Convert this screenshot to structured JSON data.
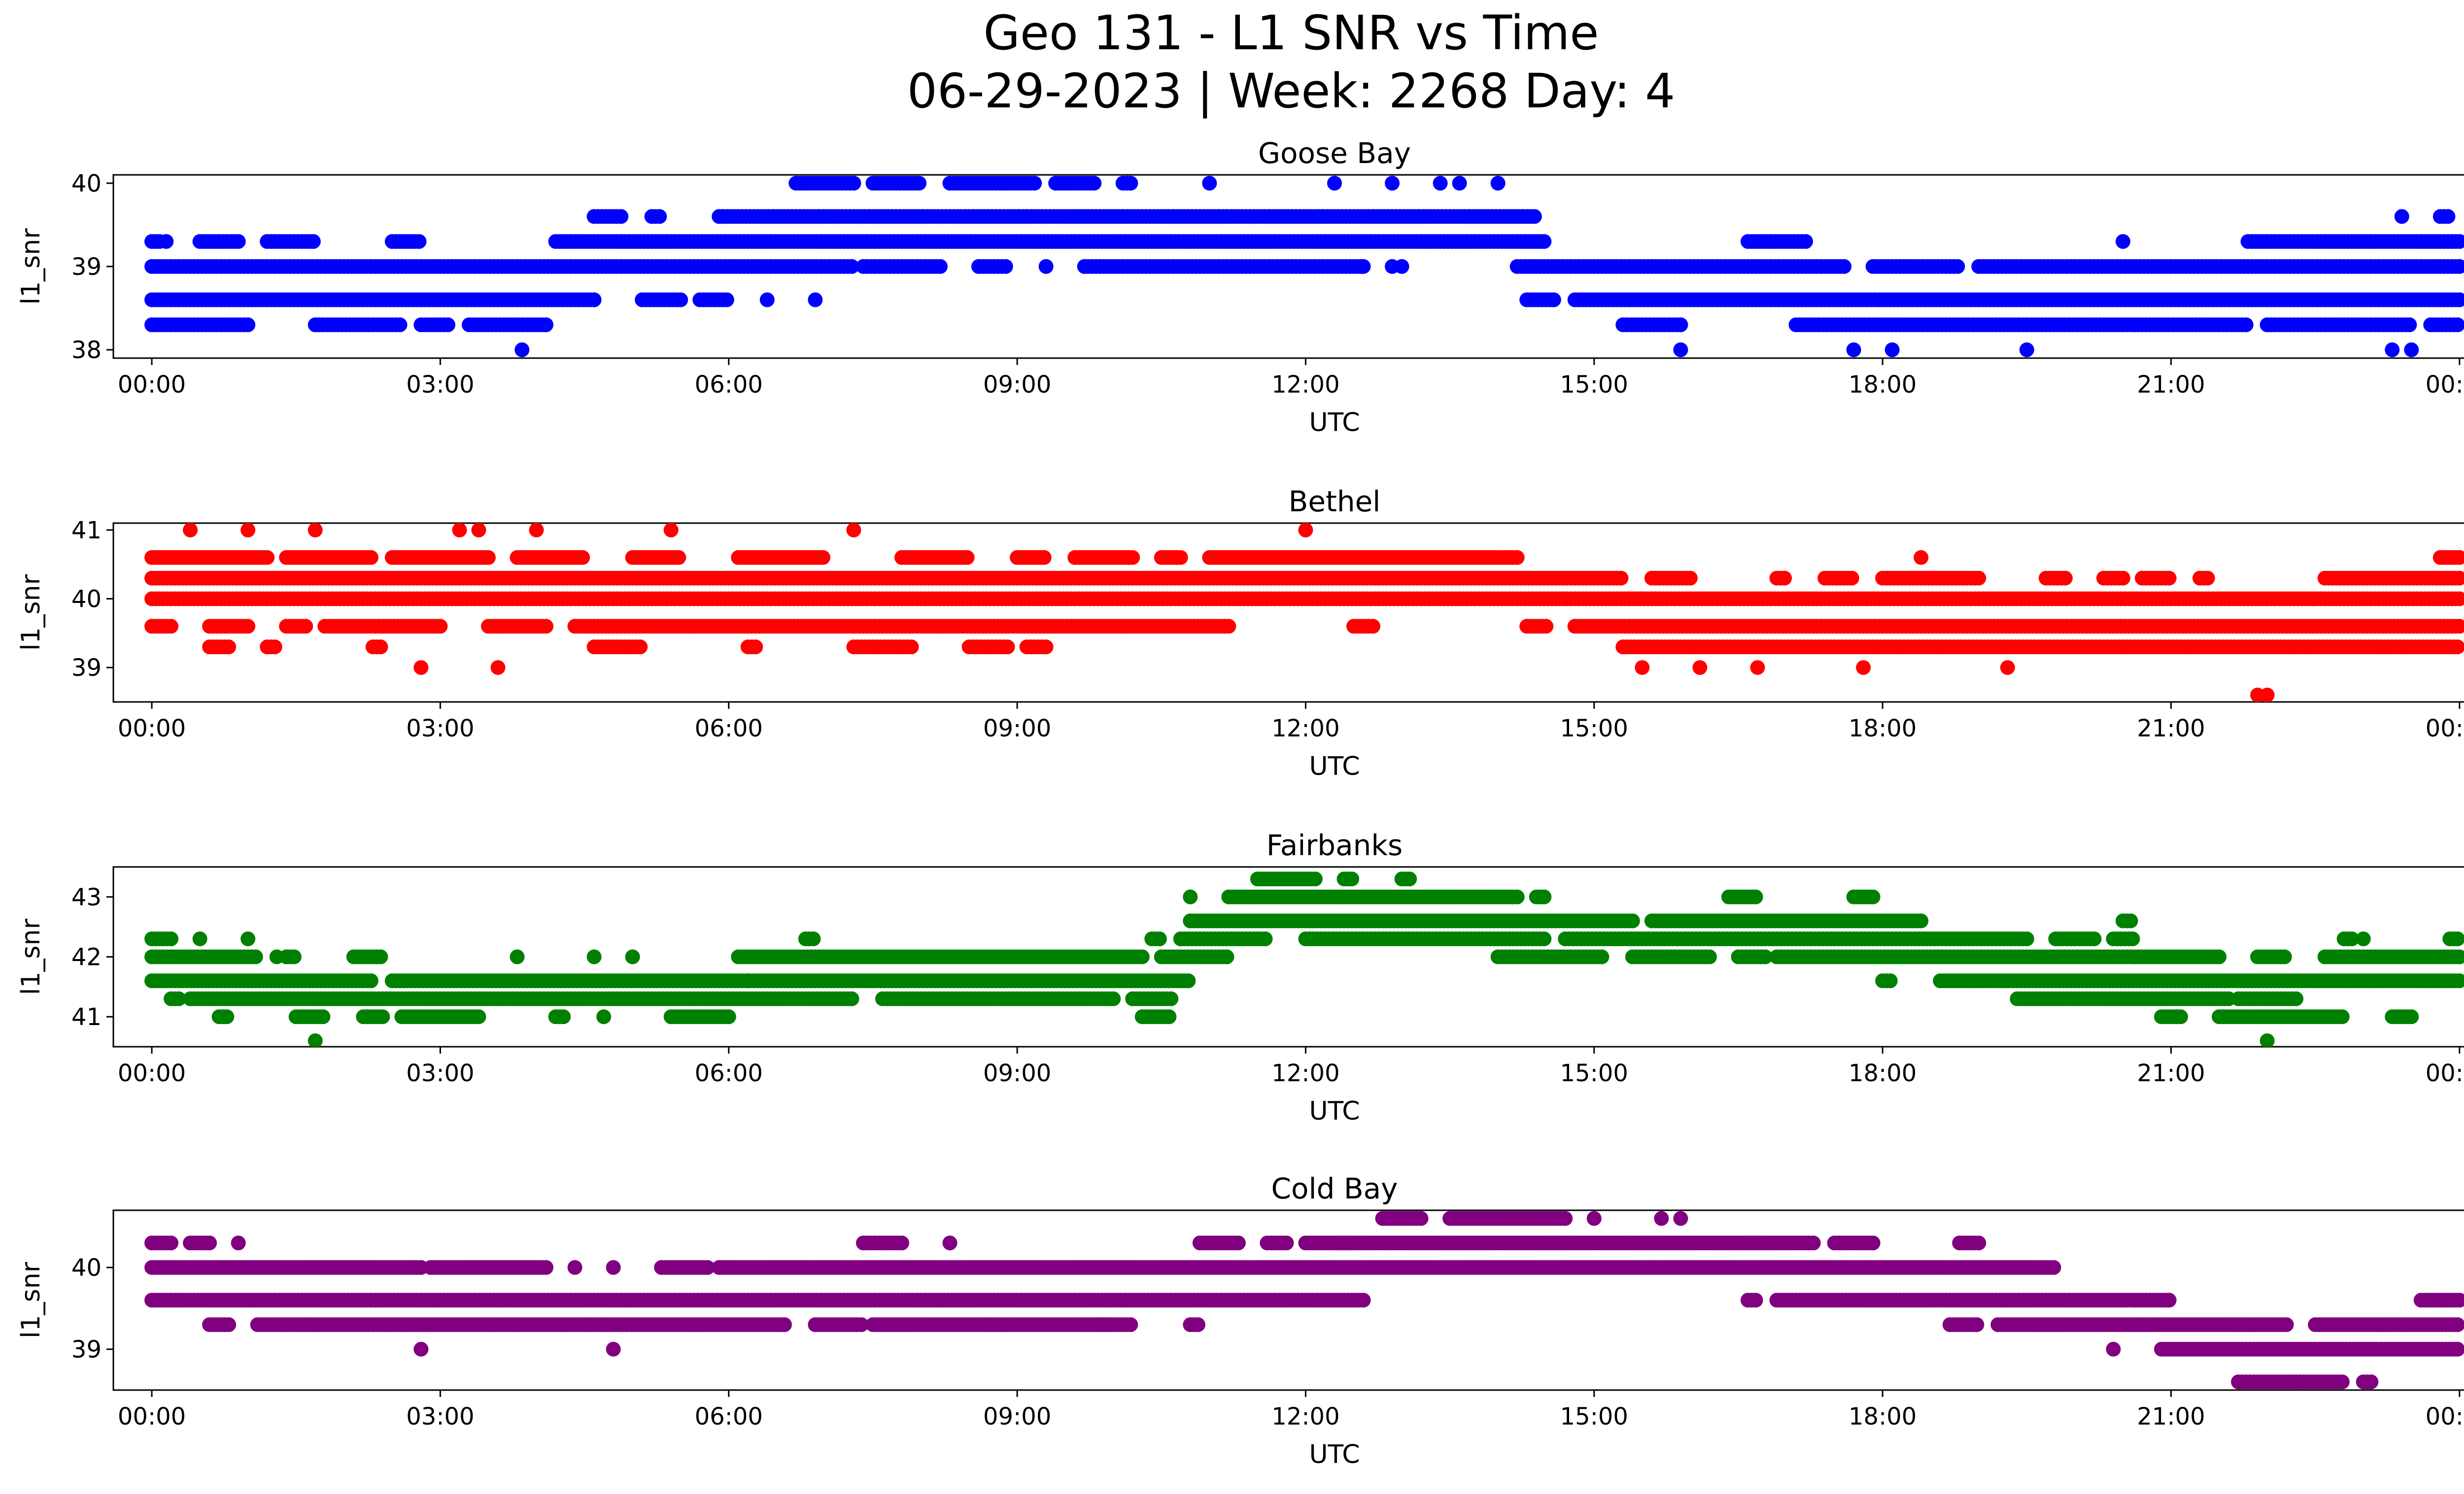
{
  "figure": {
    "title_line1": "Geo 131 - L1 SNR vs Time",
    "title_line2": "06-29-2023 | Week: 2268 Day: 4"
  },
  "chart_data": [
    {
      "type": "scatter",
      "title": "Goose Bay",
      "xlabel": "UTC",
      "ylabel": "l1_snr",
      "color": "#0000ff",
      "xlim": [
        -0.4,
        25.0
      ],
      "ylim": [
        37.9,
        40.1
      ],
      "xticks": [
        "00:00",
        "03:00",
        "06:00",
        "09:00",
        "12:00",
        "15:00",
        "18:00",
        "21:00",
        "00:00"
      ],
      "yticks": [
        38,
        39,
        40
      ],
      "bands": [
        {
          "y": 38.3,
          "segments": [
            [
              0.0,
              1.0
            ],
            [
              1.7,
              2.6
            ],
            [
              2.8,
              3.1
            ],
            [
              3.3,
              4.1
            ],
            [
              15.3,
              15.9
            ],
            [
              17.1,
              21.8
            ],
            [
              22.0,
              23.5
            ],
            [
              23.7,
              24.0
            ]
          ]
        },
        {
          "y": 38.6,
          "segments": [
            [
              0.0,
              4.6
            ],
            [
              5.1,
              5.5
            ],
            [
              5.7,
              6.0
            ],
            [
              14.3,
              14.6
            ],
            [
              14.8,
              24.0
            ]
          ]
        },
        {
          "y": 39.0,
          "segments": [
            [
              0.0,
              7.3
            ],
            [
              7.4,
              8.2
            ],
            [
              8.6,
              8.9
            ],
            [
              9.7,
              12.6
            ],
            [
              14.2,
              17.6
            ],
            [
              17.9,
              18.8
            ],
            [
              19.0,
              24.0
            ]
          ]
        },
        {
          "y": 39.3,
          "segments": [
            [
              0.0,
              0.1
            ],
            [
              0.5,
              0.9
            ],
            [
              1.2,
              1.7
            ],
            [
              2.5,
              2.8
            ],
            [
              4.2,
              14.5
            ],
            [
              16.6,
              17.2
            ],
            [
              21.8,
              24.0
            ]
          ]
        },
        {
          "y": 39.6,
          "segments": [
            [
              4.6,
              4.9
            ],
            [
              5.2,
              5.3
            ],
            [
              5.9,
              14.4
            ],
            [
              23.4,
              23.4
            ],
            [
              23.8,
              23.9
            ]
          ]
        },
        {
          "y": 40.0,
          "segments": [
            [
              6.7,
              7.3
            ],
            [
              7.5,
              8.0
            ],
            [
              8.3,
              9.2
            ],
            [
              9.4,
              9.8
            ],
            [
              10.1,
              10.2
            ]
          ]
        }
      ],
      "points": [
        [
          0.15,
          39.3
        ],
        [
          3.85,
          38.0
        ],
        [
          6.4,
          38.6
        ],
        [
          6.9,
          38.6
        ],
        [
          8.6,
          39.0
        ],
        [
          9.3,
          39.0
        ],
        [
          11.0,
          40.0
        ],
        [
          12.3,
          40.0
        ],
        [
          12.6,
          39.0
        ],
        [
          12.9,
          39.0
        ],
        [
          13.0,
          39.0
        ],
        [
          12.9,
          40.0
        ],
        [
          13.4,
          40.0
        ],
        [
          13.6,
          40.0
        ],
        [
          14.0,
          40.0
        ],
        [
          15.9,
          38.0
        ],
        [
          17.7,
          38.0
        ],
        [
          18.1,
          38.0
        ],
        [
          19.5,
          38.0
        ],
        [
          20.5,
          39.3
        ],
        [
          23.3,
          38.0
        ],
        [
          23.5,
          38.0
        ]
      ]
    },
    {
      "type": "scatter",
      "title": "Bethel",
      "xlabel": "UTC",
      "ylabel": "l1_snr",
      "color": "#ff0000",
      "xlim": [
        -0.4,
        25.0
      ],
      "ylim": [
        38.5,
        41.1
      ],
      "xticks": [
        "00:00",
        "03:00",
        "06:00",
        "09:00",
        "12:00",
        "15:00",
        "18:00",
        "21:00",
        "00:00"
      ],
      "yticks": [
        39,
        40,
        41
      ],
      "bands": [
        {
          "y": 39.3,
          "segments": [
            [
              0.6,
              0.8
            ],
            [
              1.2,
              1.3
            ],
            [
              2.3,
              2.4
            ],
            [
              4.6,
              5.1
            ],
            [
              6.2,
              6.3
            ],
            [
              7.3,
              7.9
            ],
            [
              8.5,
              8.9
            ],
            [
              9.1,
              9.3
            ],
            [
              15.3,
              24.0
            ]
          ]
        },
        {
          "y": 39.6,
          "segments": [
            [
              0.0,
              0.2
            ],
            [
              0.6,
              1.0
            ],
            [
              1.4,
              1.6
            ],
            [
              1.8,
              3.0
            ],
            [
              3.5,
              4.1
            ],
            [
              4.4,
              11.2
            ],
            [
              12.5,
              12.7
            ],
            [
              14.3,
              14.5
            ],
            [
              14.8,
              24.0
            ]
          ]
        },
        {
          "y": 40.0,
          "segments": [
            [
              0.0,
              24.0
            ]
          ]
        },
        {
          "y": 40.3,
          "segments": [
            [
              0.0,
              15.3
            ],
            [
              15.6,
              16.0
            ],
            [
              16.9,
              17.0
            ],
            [
              17.4,
              17.7
            ],
            [
              18.0,
              19.0
            ],
            [
              19.7,
              19.9
            ],
            [
              20.3,
              20.5
            ],
            [
              20.7,
              21.0
            ],
            [
              21.3,
              21.4
            ],
            [
              22.6,
              24.0
            ]
          ]
        },
        {
          "y": 40.6,
          "segments": [
            [
              0.0,
              1.2
            ],
            [
              1.4,
              2.3
            ],
            [
              2.5,
              3.5
            ],
            [
              3.8,
              4.5
            ],
            [
              5.0,
              5.5
            ],
            [
              6.1,
              7.0
            ],
            [
              7.8,
              8.5
            ],
            [
              9.0,
              9.3
            ],
            [
              9.6,
              10.2
            ],
            [
              10.5,
              10.7
            ],
            [
              11.0,
              14.2
            ],
            [
              23.8,
              24.0
            ]
          ]
        }
      ],
      "points": [
        [
          0.4,
          41.0
        ],
        [
          1.0,
          41.0
        ],
        [
          1.7,
          41.0
        ],
        [
          3.2,
          41.0
        ],
        [
          3.4,
          41.0
        ],
        [
          4.0,
          41.0
        ],
        [
          5.4,
          41.0
        ],
        [
          7.3,
          41.0
        ],
        [
          12.0,
          41.0
        ],
        [
          2.8,
          39.0
        ],
        [
          3.6,
          39.0
        ],
        [
          15.5,
          39.0
        ],
        [
          16.1,
          39.0
        ],
        [
          16.7,
          39.0
        ],
        [
          17.8,
          39.0
        ],
        [
          18.4,
          40.6
        ],
        [
          19.3,
          39.0
        ],
        [
          21.9,
          38.6
        ],
        [
          22.0,
          38.6
        ]
      ]
    },
    {
      "type": "scatter",
      "title": "Fairbanks",
      "xlabel": "UTC",
      "ylabel": "l1_snr",
      "color": "#008000",
      "xlim": [
        -0.4,
        25.0
      ],
      "ylim": [
        40.5,
        43.5
      ],
      "xticks": [
        "00:00",
        "03:00",
        "06:00",
        "09:00",
        "12:00",
        "15:00",
        "18:00",
        "21:00",
        "00:00"
      ],
      "yticks": [
        41,
        42,
        43
      ],
      "bands": [
        {
          "y": 41.0,
          "segments": [
            [
              0.7,
              0.8
            ],
            [
              1.5,
              1.8
            ],
            [
              2.2,
              2.4
            ],
            [
              2.6,
              3.4
            ],
            [
              4.2,
              4.3
            ],
            [
              5.4,
              6.0
            ],
            [
              10.3,
              10.6
            ],
            [
              20.9,
              21.1
            ],
            [
              21.5,
              22.8
            ],
            [
              23.3,
              23.5
            ]
          ]
        },
        {
          "y": 41.3,
          "segments": [
            [
              0.2,
              0.3
            ],
            [
              0.4,
              7.3
            ],
            [
              7.6,
              10.0
            ],
            [
              10.2,
              10.6
            ],
            [
              19.4,
              21.6
            ],
            [
              21.7,
              22.3
            ]
          ]
        },
        {
          "y": 41.6,
          "segments": [
            [
              0.0,
              2.3
            ],
            [
              2.5,
              10.8
            ],
            [
              18.0,
              18.1
            ],
            [
              18.6,
              24.0
            ]
          ]
        },
        {
          "y": 42.0,
          "segments": [
            [
              0.0,
              1.1
            ],
            [
              1.4,
              1.5
            ],
            [
              2.1,
              2.4
            ],
            [
              6.1,
              10.3
            ],
            [
              10.5,
              11.2
            ],
            [
              14.0,
              15.1
            ],
            [
              15.4,
              16.2
            ],
            [
              16.5,
              16.8
            ],
            [
              16.9,
              21.5
            ],
            [
              21.9,
              22.2
            ],
            [
              22.6,
              24.0
            ]
          ]
        },
        {
          "y": 42.3,
          "segments": [
            [
              0.0,
              0.2
            ],
            [
              6.8,
              6.9
            ],
            [
              10.4,
              10.5
            ],
            [
              10.7,
              11.6
            ],
            [
              12.0,
              14.5
            ],
            [
              14.7,
              19.5
            ],
            [
              19.8,
              20.2
            ],
            [
              20.4,
              20.6
            ],
            [
              22.8,
              22.9
            ],
            [
              23.9,
              24.0
            ]
          ]
        },
        {
          "y": 42.6,
          "segments": [
            [
              10.8,
              15.4
            ],
            [
              15.6,
              18.4
            ],
            [
              20.5,
              20.6
            ]
          ]
        },
        {
          "y": 43.0,
          "segments": [
            [
              11.2,
              14.2
            ],
            [
              14.4,
              14.5
            ],
            [
              16.4,
              16.7
            ],
            [
              17.7,
              17.9
            ]
          ]
        },
        {
          "y": 43.3,
          "segments": [
            [
              11.5,
              12.1
            ],
            [
              12.4,
              12.5
            ],
            [
              13.0,
              13.1
            ]
          ]
        }
      ],
      "points": [
        [
          0.5,
          42.3
        ],
        [
          1.0,
          42.3
        ],
        [
          1.3,
          42.0
        ],
        [
          1.7,
          40.6
        ],
        [
          3.8,
          42.0
        ],
        [
          4.6,
          42.0
        ],
        [
          5.0,
          42.0
        ],
        [
          4.7,
          41.0
        ],
        [
          6.2,
          41.6
        ],
        [
          10.8,
          43.0
        ],
        [
          22.0,
          40.6
        ],
        [
          23.0,
          42.3
        ]
      ]
    },
    {
      "type": "scatter",
      "title": "Cold Bay",
      "xlabel": "UTC",
      "ylabel": "l1_snr",
      "color": "#800080",
      "xlim": [
        -0.4,
        25.0
      ],
      "ylim": [
        38.5,
        40.7
      ],
      "xticks": [
        "00:00",
        "03:00",
        "06:00",
        "09:00",
        "12:00",
        "15:00",
        "18:00",
        "21:00",
        "00:00"
      ],
      "yticks": [
        39,
        40
      ],
      "bands": [
        {
          "y": 38.6,
          "segments": [
            [
              21.7,
              22.8
            ],
            [
              23.0,
              23.1
            ]
          ]
        },
        {
          "y": 39.0,
          "segments": [
            [
              20.9,
              24.0
            ]
          ]
        },
        {
          "y": 39.3,
          "segments": [
            [
              0.6,
              0.8
            ],
            [
              1.1,
              6.6
            ],
            [
              6.9,
              7.4
            ],
            [
              7.5,
              10.2
            ],
            [
              10.8,
              10.9
            ],
            [
              18.7,
              19.0
            ],
            [
              19.2,
              22.2
            ],
            [
              22.5,
              24.0
            ]
          ]
        },
        {
          "y": 39.6,
          "segments": [
            [
              0.0,
              12.6
            ],
            [
              16.6,
              16.7
            ],
            [
              16.9,
              21.0
            ],
            [
              23.6,
              24.0
            ]
          ]
        },
        {
          "y": 40.0,
          "segments": [
            [
              0.0,
              2.8
            ],
            [
              2.9,
              4.1
            ],
            [
              5.3,
              5.8
            ],
            [
              5.9,
              19.8
            ]
          ]
        },
        {
          "y": 40.3,
          "segments": [
            [
              0.0,
              0.2
            ],
            [
              0.4,
              0.6
            ],
            [
              0.9,
              0.9
            ],
            [
              7.4,
              7.8
            ],
            [
              10.9,
              11.3
            ],
            [
              11.6,
              11.8
            ],
            [
              12.0,
              12.4
            ],
            [
              12.4,
              17.3
            ],
            [
              17.5,
              17.9
            ],
            [
              18.8,
              19.0
            ]
          ]
        },
        {
          "y": 40.6,
          "segments": [
            [
              12.8,
              13.2
            ],
            [
              13.5,
              14.7
            ]
          ]
        }
      ],
      "points": [
        [
          2.8,
          39.0
        ],
        [
          4.8,
          39.0
        ],
        [
          4.4,
          40.0
        ],
        [
          4.8,
          40.0
        ],
        [
          8.3,
          40.3
        ],
        [
          9.9,
          39.3
        ],
        [
          15.0,
          40.6
        ],
        [
          15.7,
          40.6
        ],
        [
          15.9,
          40.6
        ],
        [
          20.4,
          39.0
        ]
      ]
    }
  ]
}
